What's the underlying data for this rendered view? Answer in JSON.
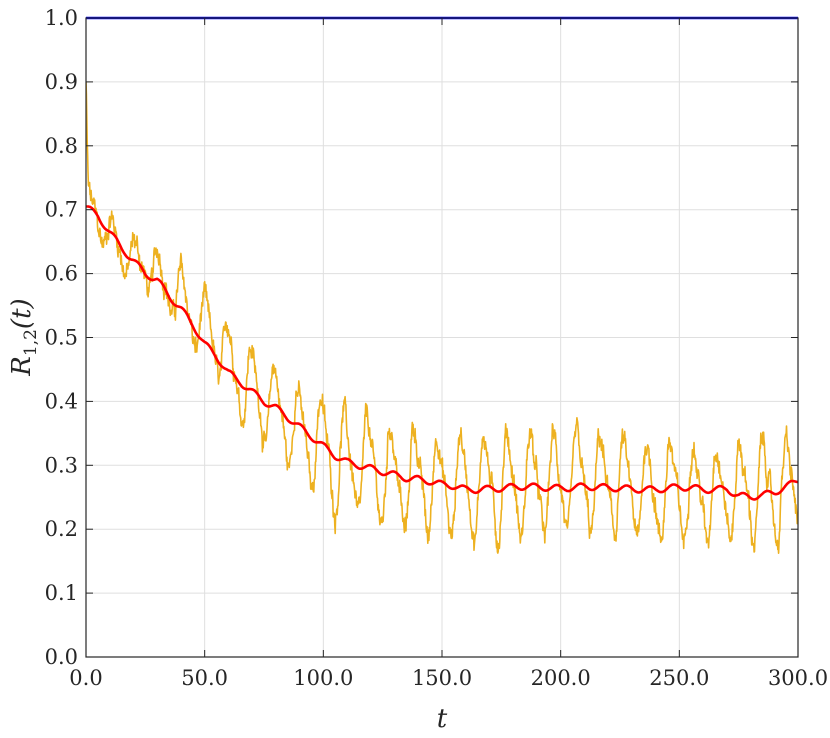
{
  "chart_data": {
    "type": "line",
    "title": "",
    "xlabel": "t",
    "ylabel": {
      "main": "R",
      "subscript": "1,2",
      "suffix": "(t)"
    },
    "xlim": [
      0,
      300
    ],
    "ylim": [
      0,
      1
    ],
    "grid": true,
    "legend": "none",
    "x_ticks": [
      0,
      50,
      100,
      150,
      200,
      250,
      300
    ],
    "x_tick_labels": [
      "0.0",
      "50.0",
      "100.0",
      "150.0",
      "200.0",
      "250.0",
      "300.0"
    ],
    "y_ticks": [
      0,
      0.1,
      0.2,
      0.3,
      0.4,
      0.5,
      0.6,
      0.7,
      0.8,
      0.9,
      1.0
    ],
    "y_tick_labels": [
      "0.0",
      "0.1",
      "0.2",
      "0.3",
      "0.4",
      "0.5",
      "0.6",
      "0.7",
      "0.8",
      "0.9",
      "1.0"
    ],
    "series": [
      {
        "color": "#edb120",
        "style": "noisy-oscillating",
        "x": [
          0,
          0.5,
          1,
          2,
          3,
          5,
          8,
          10,
          15,
          20,
          25,
          30,
          35,
          40,
          45,
          50,
          55,
          60,
          65,
          70,
          75,
          80,
          85,
          90,
          95,
          100,
          105,
          110,
          115,
          120,
          125,
          130,
          135,
          140,
          145,
          150,
          160,
          170,
          180,
          190,
          200,
          210,
          220,
          230,
          240,
          250,
          260,
          270,
          280,
          290,
          300
        ],
        "y": [
          0.9,
          0.8,
          0.72,
          0.7,
          0.7,
          0.68,
          0.67,
          0.66,
          0.64,
          0.62,
          0.61,
          0.6,
          0.58,
          0.56,
          0.53,
          0.51,
          0.49,
          0.47,
          0.44,
          0.42,
          0.4,
          0.39,
          0.37,
          0.35,
          0.34,
          0.33,
          0.31,
          0.3,
          0.3,
          0.29,
          0.29,
          0.28,
          0.28,
          0.28,
          0.27,
          0.27,
          0.27,
          0.27,
          0.27,
          0.27,
          0.27,
          0.27,
          0.27,
          0.26,
          0.26,
          0.26,
          0.26,
          0.26,
          0.26,
          0.26,
          0.26
        ],
        "oscillation_amplitude": [
          0.0,
          0.0,
          0.01,
          0.02,
          0.02,
          0.02,
          0.025,
          0.03,
          0.03,
          0.03,
          0.03,
          0.035,
          0.035,
          0.04,
          0.04,
          0.045,
          0.05,
          0.05,
          0.055,
          0.06,
          0.06,
          0.06,
          0.065,
          0.065,
          0.07,
          0.07,
          0.075,
          0.075,
          0.075,
          0.075,
          0.075,
          0.075,
          0.075,
          0.075,
          0.075,
          0.075,
          0.075,
          0.075,
          0.075,
          0.075,
          0.07,
          0.07,
          0.07,
          0.07,
          0.07,
          0.07,
          0.07,
          0.07,
          0.07,
          0.07,
          0.07
        ],
        "oscillation_period": 9.8
      },
      {
        "color": "#ff0000",
        "style": "smooth",
        "x": [
          0,
          5,
          10,
          15,
          20,
          25,
          30,
          35,
          40,
          45,
          50,
          55,
          60,
          65,
          70,
          75,
          80,
          85,
          90,
          95,
          100,
          105,
          110,
          115,
          120,
          125,
          130,
          135,
          140,
          145,
          150,
          155,
          160,
          165,
          170,
          175,
          180,
          185,
          190,
          195,
          200,
          205,
          210,
          215,
          220,
          225,
          230,
          235,
          240,
          245,
          250,
          255,
          260,
          265,
          270,
          275,
          280,
          285,
          290,
          295,
          300
        ],
        "y": [
          0.705,
          0.69,
          0.665,
          0.64,
          0.62,
          0.6,
          0.59,
          0.565,
          0.545,
          0.52,
          0.49,
          0.47,
          0.445,
          0.43,
          0.415,
          0.4,
          0.39,
          0.375,
          0.36,
          0.345,
          0.33,
          0.315,
          0.305,
          0.3,
          0.295,
          0.29,
          0.285,
          0.28,
          0.278,
          0.275,
          0.27,
          0.268,
          0.262,
          0.262,
          0.263,
          0.264,
          0.266,
          0.267,
          0.266,
          0.265,
          0.264,
          0.265,
          0.267,
          0.266,
          0.265,
          0.264,
          0.263,
          0.262,
          0.262,
          0.264,
          0.266,
          0.265,
          0.262,
          0.262,
          0.263,
          0.252,
          0.251,
          0.253,
          0.258,
          0.266,
          0.277
        ],
        "wiggle_amplitude": 0.005,
        "wiggle_period": 9.8
      },
      {
        "color": "#0000ff",
        "style": "flat",
        "x": [
          0,
          300
        ],
        "y": [
          1.0,
          1.0
        ]
      }
    ]
  }
}
